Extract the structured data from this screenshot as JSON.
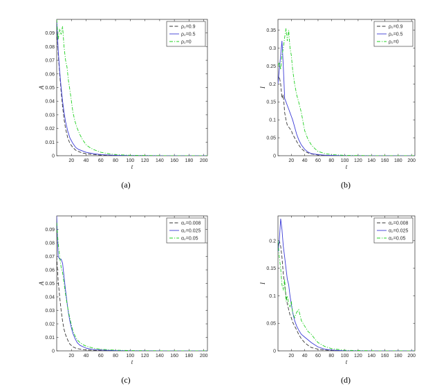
{
  "chart_data": [
    {
      "type": "line",
      "caption": "(a)",
      "xlabel": "t",
      "ylabel": "A",
      "xlim": [
        0,
        205
      ],
      "ylim": [
        0,
        0.1
      ],
      "xticks": [
        20,
        40,
        60,
        80,
        100,
        120,
        140,
        160,
        180,
        200
      ],
      "xtick_labels": [
        "20",
        "40",
        "60",
        "80",
        "100",
        "120",
        "140",
        "160",
        "180",
        "200"
      ],
      "yticks": [
        0,
        0.01,
        0.02,
        0.03,
        0.04,
        0.05,
        0.06,
        0.07,
        0.08,
        0.09
      ],
      "ytick_labels": [
        "0",
        "0.01",
        "0.02",
        "0.03",
        "0.04",
        "0.05",
        "0.06",
        "0.07",
        "0.08",
        "0.09"
      ],
      "legend_position": "top-right",
      "grid": false,
      "series": [
        {
          "name": "ρ₂=0.9",
          "color": "#333333",
          "dash": "dashed",
          "x": [
            0,
            2,
            4,
            6,
            8,
            10,
            12,
            15,
            18,
            22,
            26,
            30,
            35,
            40,
            50,
            60,
            80,
            100,
            150,
            205
          ],
          "y": [
            0.095,
            0.075,
            0.06,
            0.047,
            0.036,
            0.027,
            0.02,
            0.013,
            0.009,
            0.006,
            0.004,
            0.003,
            0.002,
            0.0015,
            0.0008,
            0.0004,
            0.0002,
            0.0001,
            0.0,
            0.0
          ]
        },
        {
          "name": "ρ₂=0.5",
          "color": "#3a3ad6",
          "dash": "solid",
          "x": [
            0,
            2,
            4,
            6,
            8,
            10,
            12,
            15,
            18,
            22,
            26,
            30,
            35,
            40,
            50,
            60,
            80,
            100,
            150,
            205
          ],
          "y": [
            0.1,
            0.078,
            0.062,
            0.05,
            0.04,
            0.032,
            0.025,
            0.018,
            0.013,
            0.009,
            0.006,
            0.0045,
            0.0035,
            0.0025,
            0.0015,
            0.0008,
            0.0003,
            0.0001,
            0.0,
            0.0
          ]
        },
        {
          "name": "ρ₂=0",
          "color": "#1fd01f",
          "dash": "dashdot",
          "x": [
            0,
            2,
            4,
            6,
            8,
            10,
            12,
            14,
            16,
            18,
            20,
            22,
            25,
            28,
            31,
            35,
            40,
            45,
            50,
            55,
            60,
            70,
            80,
            100,
            150,
            205
          ],
          "y": [
            0.1,
            0.085,
            0.093,
            0.089,
            0.095,
            0.08,
            0.07,
            0.065,
            0.055,
            0.048,
            0.04,
            0.032,
            0.025,
            0.02,
            0.016,
            0.012,
            0.008,
            0.006,
            0.0045,
            0.0035,
            0.0025,
            0.0015,
            0.0008,
            0.0003,
            0.0,
            0.0
          ]
        }
      ]
    },
    {
      "type": "line",
      "caption": "(b)",
      "xlabel": "t",
      "ylabel": "I",
      "xlim": [
        0,
        205
      ],
      "ylim": [
        0,
        0.38
      ],
      "xticks": [
        20,
        40,
        60,
        80,
        100,
        120,
        140,
        160,
        180,
        200
      ],
      "xtick_labels": [
        "20",
        "40",
        "60",
        "80",
        "100",
        "120",
        "140",
        "160",
        "180",
        "200"
      ],
      "yticks": [
        0,
        0.05,
        0.1,
        0.15,
        0.2,
        0.25,
        0.3,
        0.35
      ],
      "ytick_labels": [
        "0",
        "0.05",
        "0.1",
        "0.15",
        "0.2",
        "0.25",
        "0.3",
        "0.35"
      ],
      "legend_position": "top-right",
      "grid": false,
      "series": [
        {
          "name": "ρ₂=0.9",
          "color": "#333333",
          "dash": "dashed",
          "x": [
            0,
            2,
            4,
            6,
            8,
            10,
            12,
            14,
            16,
            18,
            20,
            22,
            25,
            28,
            31,
            35,
            40,
            45,
            50,
            60,
            70,
            80,
            100,
            150,
            205
          ],
          "y": [
            0.21,
            0.22,
            0.2,
            0.16,
            0.17,
            0.12,
            0.1,
            0.085,
            0.08,
            0.075,
            0.07,
            0.06,
            0.05,
            0.04,
            0.03,
            0.02,
            0.012,
            0.008,
            0.005,
            0.002,
            0.001,
            0.0005,
            0.0,
            0.0,
            0.0
          ]
        },
        {
          "name": "ρ₂=0.5",
          "color": "#3a3ad6",
          "dash": "solid",
          "x": [
            0,
            2,
            4,
            6,
            8,
            10,
            12,
            14,
            16,
            18,
            20,
            22,
            25,
            28,
            31,
            35,
            40,
            45,
            50,
            60,
            70,
            80,
            100,
            150,
            205
          ],
          "y": [
            0.2,
            0.24,
            0.28,
            0.32,
            0.25,
            0.16,
            0.15,
            0.14,
            0.13,
            0.12,
            0.11,
            0.1,
            0.08,
            0.06,
            0.045,
            0.03,
            0.018,
            0.01,
            0.006,
            0.003,
            0.0015,
            0.0007,
            0.0,
            0.0,
            0.0
          ]
        },
        {
          "name": "ρ₂=0",
          "color": "#1fd01f",
          "dash": "dashdot",
          "x": [
            0,
            2,
            4,
            6,
            8,
            10,
            12,
            14,
            16,
            18,
            20,
            22,
            25,
            28,
            31,
            35,
            40,
            45,
            50,
            55,
            60,
            70,
            80,
            100,
            150,
            205
          ],
          "y": [
            0.25,
            0.26,
            0.24,
            0.28,
            0.3,
            0.33,
            0.355,
            0.32,
            0.35,
            0.3,
            0.28,
            0.24,
            0.2,
            0.17,
            0.15,
            0.12,
            0.07,
            0.045,
            0.03,
            0.02,
            0.012,
            0.006,
            0.003,
            0.001,
            0.0,
            0.0
          ]
        }
      ]
    },
    {
      "type": "line",
      "caption": "(c)",
      "xlabel": "t",
      "ylabel": "A",
      "xlim": [
        0,
        205
      ],
      "ylim": [
        0,
        0.1
      ],
      "xticks": [
        20,
        40,
        60,
        80,
        100,
        120,
        140,
        160,
        180,
        200
      ],
      "xtick_labels": [
        "20",
        "40",
        "60",
        "80",
        "100",
        "120",
        "140",
        "160",
        "180",
        "200"
      ],
      "yticks": [
        0,
        0.01,
        0.02,
        0.03,
        0.04,
        0.05,
        0.06,
        0.07,
        0.08,
        0.09
      ],
      "ytick_labels": [
        "0",
        "0.01",
        "0.02",
        "0.03",
        "0.04",
        "0.05",
        "0.06",
        "0.07",
        "0.08",
        "0.09"
      ],
      "legend_position": "top-right",
      "grid": false,
      "series": [
        {
          "name": "α₂=0.008",
          "color": "#333333",
          "dash": "dashed",
          "x": [
            0,
            2,
            4,
            6,
            8,
            10,
            12,
            15,
            18,
            22,
            26,
            30,
            35,
            40,
            50,
            60,
            80,
            100,
            150,
            205
          ],
          "y": [
            0.07,
            0.052,
            0.04,
            0.03,
            0.022,
            0.016,
            0.012,
            0.008,
            0.005,
            0.003,
            0.002,
            0.0015,
            0.001,
            0.0007,
            0.0004,
            0.0002,
            0.0001,
            0.0,
            0.0,
            0.0
          ]
        },
        {
          "name": "α₂=0.025",
          "color": "#3a3ad6",
          "dash": "solid",
          "x": [
            0,
            2,
            4,
            6,
            8,
            10,
            12,
            14,
            16,
            18,
            20,
            22,
            25,
            28,
            32,
            36,
            40,
            50,
            60,
            80,
            100,
            150,
            205
          ],
          "y": [
            0.1,
            0.07,
            0.068,
            0.068,
            0.065,
            0.055,
            0.045,
            0.036,
            0.028,
            0.022,
            0.017,
            0.013,
            0.009,
            0.006,
            0.004,
            0.003,
            0.002,
            0.001,
            0.0006,
            0.0002,
            0.0001,
            0.0,
            0.0
          ]
        },
        {
          "name": "α₂=0.05",
          "color": "#1fd01f",
          "dash": "dashdot",
          "x": [
            0,
            2,
            4,
            6,
            8,
            10,
            12,
            14,
            16,
            18,
            20,
            22,
            25,
            28,
            32,
            36,
            40,
            50,
            60,
            80,
            100,
            150,
            205
          ],
          "y": [
            0.095,
            0.08,
            0.07,
            0.062,
            0.058,
            0.05,
            0.042,
            0.035,
            0.029,
            0.024,
            0.019,
            0.015,
            0.011,
            0.008,
            0.006,
            0.0045,
            0.0035,
            0.002,
            0.0012,
            0.0005,
            0.0002,
            0.0,
            0.0
          ]
        }
      ]
    },
    {
      "type": "line",
      "caption": "(d)",
      "xlabel": "t",
      "ylabel": "I",
      "xlim": [
        0,
        205
      ],
      "ylim": [
        0,
        0.245
      ],
      "xticks": [
        20,
        40,
        60,
        80,
        100,
        120,
        140,
        160,
        180,
        200
      ],
      "xtick_labels": [
        "20",
        "40",
        "60",
        "80",
        "100",
        "120",
        "140",
        "160",
        "180",
        "200"
      ],
      "yticks": [
        0,
        0.05,
        0.1,
        0.15,
        0.2
      ],
      "ytick_labels": [
        "0",
        "0.05",
        "0.1",
        "0.15",
        "0.2"
      ],
      "legend_position": "top-right",
      "grid": false,
      "series": [
        {
          "name": "α₂=0.008",
          "color": "#333333",
          "dash": "dashed",
          "x": [
            0,
            2,
            4,
            6,
            8,
            10,
            12,
            14,
            16,
            18,
            20,
            22,
            25,
            28,
            31,
            35,
            40,
            45,
            50,
            60,
            70,
            80,
            100,
            150,
            205
          ],
          "y": [
            0.19,
            0.2,
            0.19,
            0.17,
            0.14,
            0.12,
            0.1,
            0.085,
            0.075,
            0.065,
            0.06,
            0.052,
            0.045,
            0.038,
            0.03,
            0.022,
            0.015,
            0.01,
            0.006,
            0.003,
            0.0015,
            0.0007,
            0.0,
            0.0,
            0.0
          ]
        },
        {
          "name": "α₂=0.025",
          "color": "#3a3ad6",
          "dash": "solid",
          "x": [
            0,
            2,
            4,
            6,
            8,
            10,
            12,
            14,
            16,
            18,
            20,
            22,
            25,
            28,
            31,
            35,
            40,
            45,
            50,
            60,
            70,
            80,
            100,
            150,
            205
          ],
          "y": [
            0.18,
            0.2,
            0.24,
            0.22,
            0.19,
            0.17,
            0.15,
            0.13,
            0.12,
            0.1,
            0.085,
            0.07,
            0.055,
            0.045,
            0.038,
            0.03,
            0.025,
            0.02,
            0.015,
            0.007,
            0.003,
            0.0015,
            0.0,
            0.0,
            0.0
          ]
        },
        {
          "name": "α₂=0.05",
          "color": "#1fd01f",
          "dash": "dashdot",
          "x": [
            0,
            2,
            4,
            6,
            8,
            10,
            12,
            14,
            16,
            18,
            20,
            22,
            25,
            28,
            31,
            35,
            40,
            45,
            50,
            55,
            60,
            70,
            80,
            100,
            150,
            205
          ],
          "y": [
            0.2,
            0.17,
            0.15,
            0.12,
            0.11,
            0.13,
            0.09,
            0.1,
            0.085,
            0.08,
            0.09,
            0.07,
            0.06,
            0.07,
            0.075,
            0.055,
            0.045,
            0.035,
            0.03,
            0.022,
            0.015,
            0.008,
            0.004,
            0.001,
            0.0,
            0.0
          ]
        }
      ]
    }
  ]
}
